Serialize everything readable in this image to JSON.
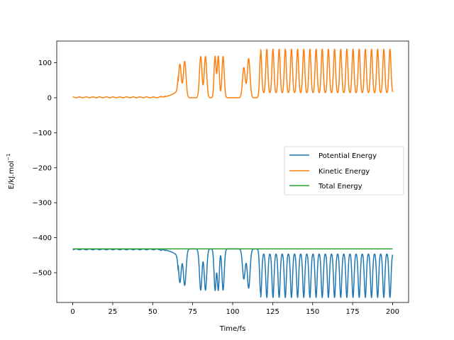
{
  "chart_data": {
    "type": "line",
    "title": "",
    "xlabel": "Time/fs",
    "ylabel": "E/kJ.mol",
    "ylabel_superscript": "−1",
    "xlim": [
      -10,
      210
    ],
    "ylim": [
      -585,
      162
    ],
    "xticks": [
      0,
      25,
      50,
      75,
      100,
      125,
      150,
      175,
      200
    ],
    "yticks": [
      100,
      0,
      -100,
      -200,
      -300,
      -400,
      -500
    ],
    "ytick_labels": [
      "100",
      "0",
      "−100",
      "−200",
      "−300",
      "−400",
      "−500"
    ],
    "legend_position": "center-right",
    "series": [
      {
        "name": "Potential Energy",
        "color": "#1f77b4",
        "total_energy": -432,
        "kinetic_peaks": [
          {
            "t": 67,
            "amp": 96,
            "w": 1.2
          },
          {
            "t": 70,
            "amp": 104,
            "w": 1.2
          },
          {
            "t": 80,
            "amp": 118,
            "w": 1.1
          },
          {
            "t": 83,
            "amp": 118,
            "w": 1.1
          },
          {
            "t": 89,
            "amp": 118,
            "w": 0.9
          },
          {
            "t": 91,
            "amp": 118,
            "w": 0.9
          },
          {
            "t": 94,
            "amp": 118,
            "w": 1.0
          },
          {
            "t": 107,
            "amp": 86,
            "w": 1.2
          },
          {
            "t": 110,
            "amp": 112,
            "w": 1.2
          }
        ],
        "periodic": {
          "start": 117.5,
          "end": 200,
          "period": 3.85,
          "amp": 127,
          "w": 0.9
        },
        "pre_wave_amp": 2.5
      },
      {
        "name": "Kinetic Energy",
        "color": "#ff7f0e"
      },
      {
        "name": "Total Energy",
        "color": "#2ca02c",
        "value": -432
      }
    ]
  }
}
